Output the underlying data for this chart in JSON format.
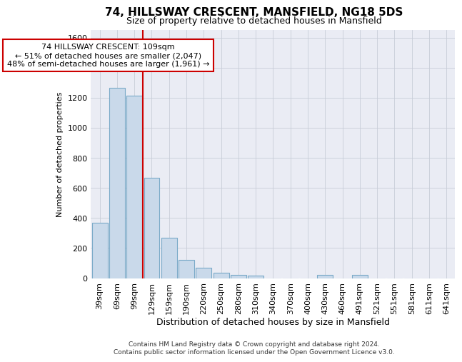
{
  "title": "74, HILLSWAY CRESCENT, MANSFIELD, NG18 5DS",
  "subtitle": "Size of property relative to detached houses in Mansfield",
  "xlabel": "Distribution of detached houses by size in Mansfield",
  "ylabel": "Number of detached properties",
  "footer": "Contains HM Land Registry data © Crown copyright and database right 2024.\nContains public sector information licensed under the Open Government Licence v3.0.",
  "categories": [
    "39sqm",
    "69sqm",
    "99sqm",
    "129sqm",
    "159sqm",
    "190sqm",
    "220sqm",
    "250sqm",
    "280sqm",
    "310sqm",
    "340sqm",
    "370sqm",
    "400sqm",
    "430sqm",
    "460sqm",
    "491sqm",
    "521sqm",
    "551sqm",
    "581sqm",
    "611sqm",
    "641sqm"
  ],
  "values": [
    370,
    1265,
    1215,
    665,
    270,
    120,
    70,
    35,
    20,
    15,
    0,
    0,
    0,
    20,
    0,
    20,
    0,
    0,
    0,
    0,
    0
  ],
  "bar_color": "#c9d9ea",
  "bar_edge_color": "#7aaac8",
  "grid_color": "#c8cdd8",
  "bg_color": "#eaecf4",
  "vline_color": "#cc0000",
  "vline_x": 2.5,
  "annotation_text": "74 HILLSWAY CRESCENT: 109sqm\n← 51% of detached houses are smaller (2,047)\n48% of semi-detached houses are larger (1,961) →",
  "annotation_box_color": "#ffffff",
  "annotation_box_edge": "#cc0000",
  "ylim": [
    0,
    1650
  ],
  "yticks": [
    0,
    200,
    400,
    600,
    800,
    1000,
    1200,
    1400,
    1600
  ],
  "title_fontsize": 11,
  "subtitle_fontsize": 9,
  "ylabel_fontsize": 8,
  "xlabel_fontsize": 9,
  "tick_fontsize": 8,
  "ann_fontsize": 8
}
